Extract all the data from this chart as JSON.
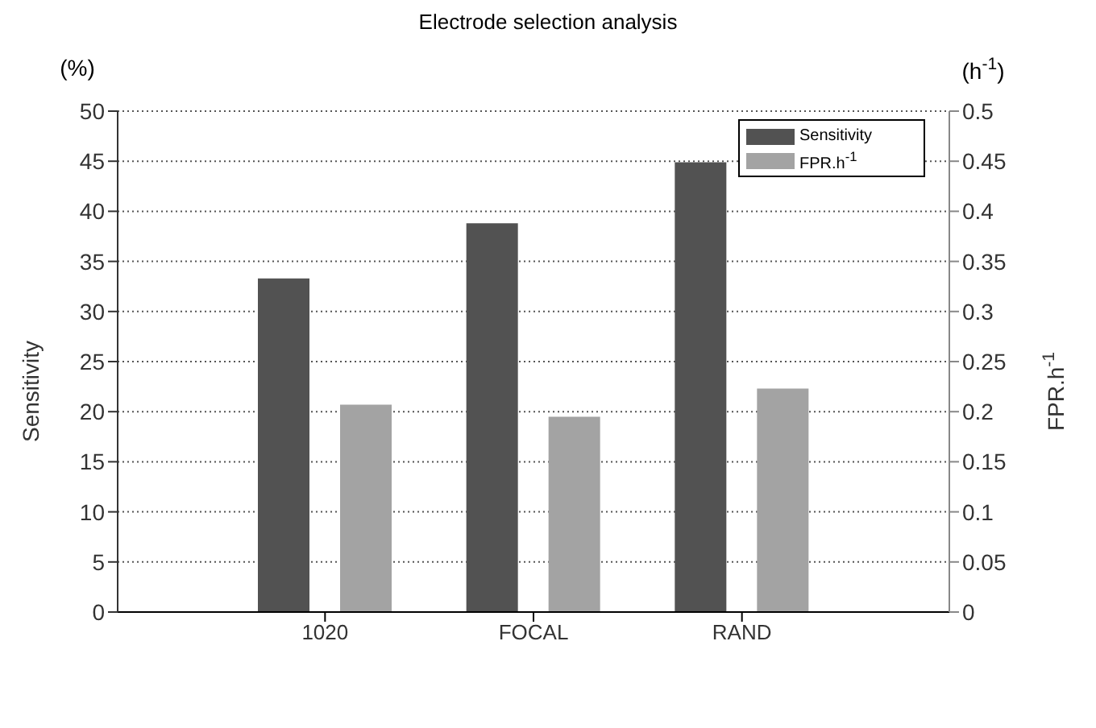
{
  "chart_data": {
    "type": "bar",
    "title": "Electrode selection analysis",
    "categories": [
      "1020",
      "FOCAL",
      "RAND"
    ],
    "series": [
      {
        "name": "Sensitivity",
        "color": "#525252",
        "values": [
          33.3,
          38.8,
          44.9
        ]
      },
      {
        "name": "FPR.h$^{-1}$",
        "color": "#a3a3a3",
        "values": [
          0.207,
          0.195,
          0.223
        ],
        "axis": "y2"
      }
    ],
    "ylabel": "Sensitivity",
    "y2label": "FPR.h$^{-1}$",
    "annotations": [
      "(%)",
      "(h$^{-1}$)"
    ],
    "ylim": [
      0,
      50
    ],
    "yticks": [
      0,
      5,
      10,
      15,
      20,
      25,
      30,
      35,
      40,
      45,
      50
    ],
    "y2lim": [
      0,
      0.5
    ],
    "y2ticks": [
      0,
      0.05,
      0.1,
      0.15,
      0.2,
      0.25,
      0.3,
      0.35,
      0.4,
      0.45,
      0.5
    ],
    "grid": "y",
    "legend": "top right"
  }
}
